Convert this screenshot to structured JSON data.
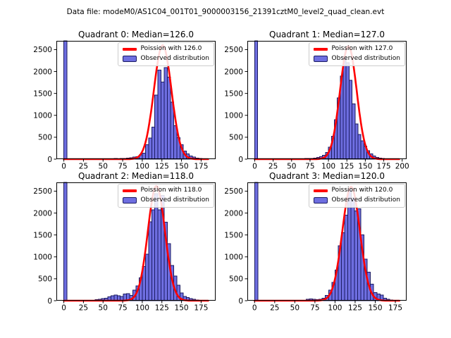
{
  "figure": {
    "title": "Data file: modeM0/AS1C04_001T01_9000003156_21391cztM0_level2_quad_clean.evt",
    "background": "#ffffff"
  },
  "colors": {
    "bar_fill": "#6e6ee0",
    "bar_edge": "#1b1b62",
    "curve": "#ff0000",
    "axis": "#000000",
    "tick_label": "#000000",
    "legend_border": "#cccccc"
  },
  "chart_data": [
    {
      "type": "bar",
      "subtype": "histogram-with-fit-line",
      "quadrant": 0,
      "title": "Quadrant 0: Median=126.0",
      "median": 126.0,
      "legend": [
        "Poission with 126.0",
        "Observed distribution"
      ],
      "legend_position": "upper right",
      "x_ticks": [
        0,
        25,
        50,
        75,
        100,
        125,
        150,
        175
      ],
      "y_ticks": [
        0,
        500,
        1000,
        1500,
        2000,
        2500
      ],
      "xlim": [
        -9.5,
        193.5
      ],
      "ylim": [
        0,
        2700
      ],
      "bin_width": 4,
      "zero_bin_clipped": true,
      "bins_x": [
        0,
        48,
        52,
        56,
        60,
        64,
        68,
        72,
        76,
        80,
        84,
        88,
        92,
        96,
        100,
        104,
        108,
        112,
        116,
        120,
        124,
        128,
        132,
        136,
        140,
        144,
        148,
        152,
        156,
        160,
        164,
        168,
        172,
        176,
        180
      ],
      "bins_count": [
        2700,
        10,
        8,
        12,
        10,
        15,
        12,
        18,
        20,
        25,
        30,
        45,
        60,
        95,
        140,
        330,
        480,
        730,
        1460,
        2030,
        1760,
        2090,
        1870,
        1300,
        760,
        490,
        330,
        185,
        120,
        75,
        45,
        28,
        16,
        10,
        6
      ],
      "poisson": {
        "mean": 126.0,
        "sigma": 11.2,
        "peak": 2600
      }
    },
    {
      "type": "bar",
      "subtype": "histogram-with-fit-line",
      "quadrant": 1,
      "title": "Quadrant 1: Median=127.0",
      "median": 127.0,
      "legend": [
        "Poission with 127.0",
        "Observed distribution"
      ],
      "legend_position": "upper right",
      "x_ticks": [
        0,
        25,
        50,
        75,
        100,
        125,
        150,
        175,
        200
      ],
      "y_ticks": [
        0,
        500,
        1000,
        1500,
        2000,
        2500
      ],
      "xlim": [
        -10,
        206
      ],
      "ylim": [
        0,
        2700
      ],
      "bin_width": 4,
      "zero_bin_clipped": true,
      "bins_x": [
        0,
        52,
        56,
        60,
        64,
        68,
        72,
        76,
        80,
        84,
        88,
        92,
        96,
        100,
        104,
        108,
        112,
        116,
        120,
        124,
        128,
        132,
        136,
        140,
        144,
        148,
        152,
        156,
        160,
        164,
        168,
        172,
        176,
        180,
        184,
        188,
        192
      ],
      "bins_count": [
        2700,
        8,
        10,
        12,
        10,
        14,
        16,
        20,
        28,
        40,
        60,
        90,
        150,
        270,
        520,
        900,
        1400,
        1900,
        2320,
        2200,
        1800,
        1260,
        800,
        560,
        420,
        300,
        190,
        120,
        70,
        42,
        26,
        16,
        10,
        8,
        6,
        5,
        4
      ],
      "poisson": {
        "mean": 127.0,
        "sigma": 11.3,
        "peak": 2580
      }
    },
    {
      "type": "bar",
      "subtype": "histogram-with-fit-line",
      "quadrant": 2,
      "title": "Quadrant 2: Median=118.0",
      "median": 118.0,
      "legend": [
        "Poission with 118.0",
        "Observed distribution"
      ],
      "legend_position": "upper right",
      "x_ticks": [
        0,
        25,
        50,
        75,
        100,
        125,
        150,
        175
      ],
      "y_ticks": [
        0,
        500,
        1000,
        1500,
        2000,
        2500
      ],
      "xlim": [
        -9.5,
        193.5
      ],
      "ylim": [
        0,
        2700
      ],
      "bin_width": 4,
      "zero_bin_clipped": true,
      "bins_x": [
        0,
        40,
        44,
        48,
        52,
        56,
        60,
        64,
        68,
        72,
        76,
        80,
        84,
        88,
        92,
        96,
        100,
        104,
        108,
        112,
        116,
        120,
        124,
        128,
        132,
        136,
        140,
        144,
        148,
        152,
        156,
        160,
        164,
        168,
        172,
        176,
        180
      ],
      "bins_count": [
        2700,
        25,
        35,
        50,
        60,
        90,
        110,
        130,
        110,
        95,
        150,
        160,
        120,
        240,
        340,
        520,
        780,
        1060,
        1800,
        2070,
        2440,
        2070,
        2400,
        1790,
        1300,
        800,
        560,
        350,
        180,
        100,
        70,
        48,
        30,
        20,
        12,
        8,
        5
      ],
      "poisson": {
        "mean": 118.0,
        "sigma": 10.9,
        "peak": 2620
      }
    },
    {
      "type": "bar",
      "subtype": "histogram-with-fit-line",
      "quadrant": 3,
      "title": "Quadrant 3: Median=120.0",
      "median": 120.0,
      "legend": [
        "Poission with 120.0",
        "Observed distribution"
      ],
      "legend_position": "upper right",
      "x_ticks": [
        0,
        25,
        50,
        75,
        100,
        125,
        150,
        175
      ],
      "y_ticks": [
        0,
        500,
        1000,
        1500,
        2000,
        2500
      ],
      "xlim": [
        -9,
        189
      ],
      "ylim": [
        0,
        2700
      ],
      "bin_width": 4,
      "zero_bin_clipped": true,
      "bins_x": [
        0,
        64,
        68,
        72,
        76,
        80,
        84,
        88,
        92,
        96,
        100,
        104,
        108,
        112,
        116,
        120,
        124,
        128,
        132,
        136,
        140,
        144,
        148,
        152,
        156,
        160,
        164,
        168,
        172,
        176
      ],
      "bins_count": [
        2700,
        35,
        42,
        30,
        25,
        32,
        60,
        120,
        240,
        420,
        700,
        1250,
        1550,
        1950,
        2540,
        2350,
        2050,
        2100,
        1500,
        950,
        650,
        380,
        185,
        150,
        130,
        60,
        32,
        16,
        10,
        6
      ],
      "poisson": {
        "mean": 120.0,
        "sigma": 11.0,
        "peak": 2600
      }
    }
  ]
}
